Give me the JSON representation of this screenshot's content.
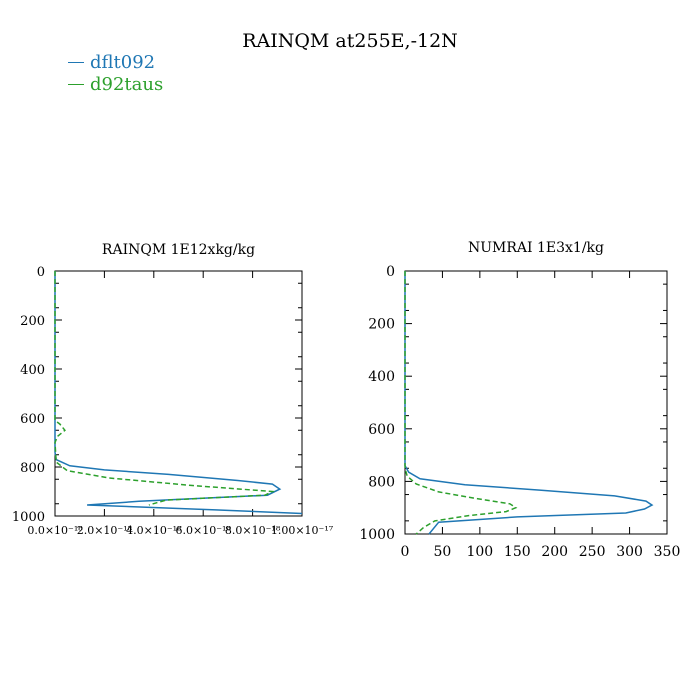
{
  "figure": {
    "title": "RAINQM at255E,-12N",
    "legend": [
      {
        "label": "dflt092",
        "color": "#1f77b4"
      },
      {
        "label": "d92taus",
        "color": "#2ca02c"
      }
    ]
  },
  "chart_data": [
    {
      "type": "line",
      "title": "RAINQM  1E12xkg/kg",
      "xlabel": "",
      "ylabel": "",
      "xlim": [
        0,
        1e-17
      ],
      "ylim": [
        1000,
        0
      ],
      "y_inverted": true,
      "grid": false,
      "xtick_labels": [
        "0.0×10⁻¹⁸",
        "2.0×10⁻¹⁸",
        "4.0×10⁻¹⁸",
        "6.0×10⁻¹⁸",
        "8.0×10⁻¹⁸",
        "1.00×10⁻¹⁷"
      ],
      "xtick_values": [
        0,
        2e-18,
        4e-18,
        6e-18,
        8e-18,
        1e-17
      ],
      "ytick_labels": [
        "0",
        "200",
        "400",
        "600",
        "800",
        "1000"
      ],
      "ytick_values": [
        0,
        200,
        400,
        600,
        800,
        1000
      ],
      "series": [
        {
          "name": "dflt092",
          "color": "#1f77b4",
          "dash": "solid",
          "x": [
            0,
            0,
            5e-20,
            6e-19,
            2e-18,
            4.6e-18,
            7.4e-18,
            8.8e-18,
            9.1e-18,
            8.6e-18,
            3.4e-18,
            1.3e-18,
            6.5e-18,
            1e-17
          ],
          "y": [
            0,
            740,
            770,
            795,
            812,
            830,
            855,
            870,
            890,
            915,
            940,
            955,
            975,
            990
          ]
        },
        {
          "name": "d92taus",
          "color": "#2ca02c",
          "dash": "dashed",
          "x": [
            0,
            0,
            2e-19,
            4e-19,
            1e-19,
            0,
            5e-20,
            5e-19,
            2.2e-18,
            5.5e-18,
            8.8e-18,
            8.5e-18,
            4.5e-18,
            3.8e-18
          ],
          "y": [
            0,
            610,
            625,
            650,
            675,
            700,
            780,
            815,
            845,
            875,
            900,
            915,
            935,
            955
          ]
        }
      ]
    },
    {
      "type": "line",
      "title": "NUMRAI  1E3x1/kg",
      "xlabel": "",
      "ylabel": "",
      "xlim": [
        0,
        350
      ],
      "ylim": [
        1000,
        0
      ],
      "y_inverted": true,
      "grid": false,
      "xtick_labels": [
        "0",
        "50",
        "100",
        "150",
        "200",
        "250",
        "300",
        "350"
      ],
      "xtick_values": [
        0,
        50,
        100,
        150,
        200,
        250,
        300,
        350
      ],
      "ytick_labels": [
        "0",
        "200",
        "400",
        "600",
        "800",
        "1000"
      ],
      "ytick_values": [
        0,
        200,
        400,
        600,
        800,
        1000
      ],
      "series": [
        {
          "name": "dflt092",
          "color": "#1f77b4",
          "dash": "solid",
          "x": [
            0,
            0,
            5,
            20,
            80,
            180,
            280,
            322,
            330,
            320,
            295,
            150,
            45,
            32
          ],
          "y": [
            0,
            740,
            765,
            790,
            813,
            833,
            855,
            875,
            890,
            905,
            920,
            935,
            955,
            1000
          ]
        },
        {
          "name": "d92taus",
          "color": "#2ca02c",
          "dash": "dashed",
          "x": [
            0,
            0,
            3,
            15,
            45,
            95,
            140,
            148,
            135,
            85,
            40,
            25,
            15
          ],
          "y": [
            0,
            750,
            780,
            810,
            840,
            865,
            885,
            900,
            915,
            930,
            950,
            975,
            1000
          ]
        }
      ]
    }
  ]
}
